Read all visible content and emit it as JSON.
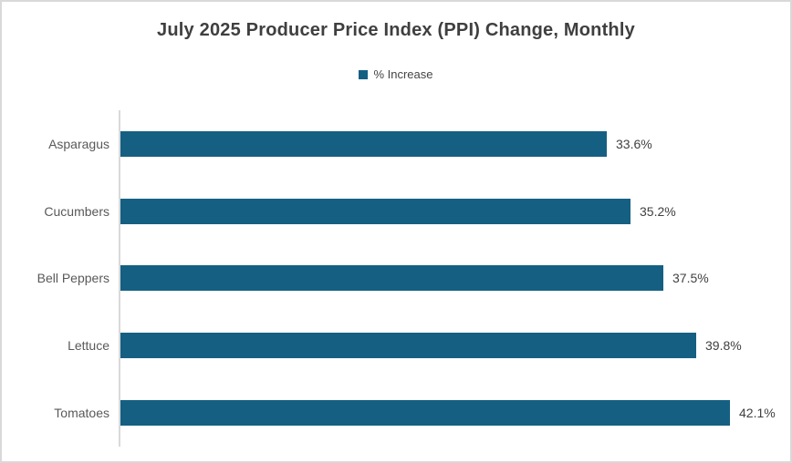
{
  "frame": {
    "background": "#FFFFFF",
    "border_color": "#D9D9D9"
  },
  "chart_data": {
    "type": "bar",
    "orientation": "horizontal",
    "title": "July 2025 Producer Price Index (PPI) Change, Monthly",
    "legend": {
      "label": "% Increase",
      "position": "top",
      "swatch_color": "#156082"
    },
    "categories": [
      "Asparagus",
      "Cucumbers",
      "Bell Peppers",
      "Lettuce",
      "Tomatoes"
    ],
    "values": [
      33.6,
      35.2,
      37.5,
      39.8,
      42.1
    ],
    "value_labels": [
      "33.6%",
      "35.2%",
      "37.5%",
      "39.8%",
      "42.1%"
    ],
    "xlabel": "",
    "ylabel": "",
    "xlim": [
      0,
      45
    ],
    "grid": false,
    "data_labels": true,
    "bar_color": "#156082",
    "title_color": "#3F3F3F",
    "category_label_color": "#595959",
    "value_label_color": "#404040",
    "axis_line_color": "#D9D9D9"
  }
}
